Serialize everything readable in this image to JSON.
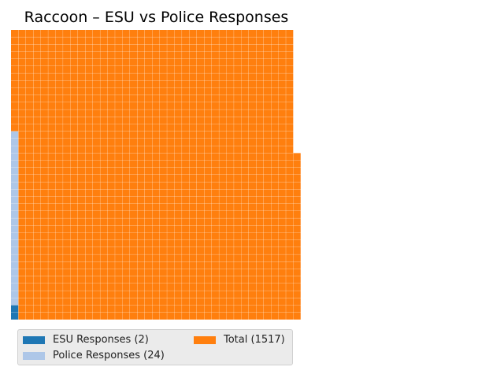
{
  "chart_data": {
    "type": "waffle",
    "title": "Raccoon – ESU vs Police Responses",
    "series": [
      {
        "name": "ESU Responses (2)",
        "value": 2,
        "color": "#1f77b4"
      },
      {
        "name": "Police Responses (24)",
        "value": 24,
        "color": "#aec7e8"
      },
      {
        "name": "Total (1517)",
        "value": 1517,
        "color": "#ff7f0e"
      }
    ],
    "fill_order": "column-wise from bottom-left",
    "legend_placement": "below"
  }
}
